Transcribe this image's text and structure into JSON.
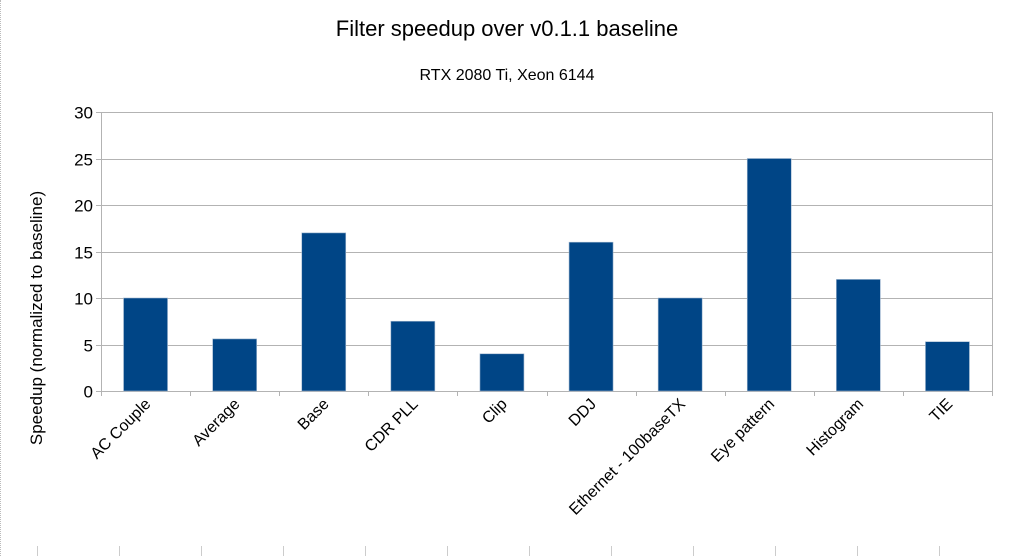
{
  "chart_data": {
    "type": "bar",
    "title": "Filter speedup over v0.1.1 baseline",
    "subtitle": "RTX 2080 Ti, Xeon 6144",
    "xlabel": "",
    "ylabel": "Speedup (normalized to baseline)",
    "categories": [
      "AC Couple",
      "Average",
      "Base",
      "CDR PLL",
      "Clip",
      "DDJ",
      "Ethernet - 100baseTX",
      "Eye pattern",
      "Histogram",
      "TIE"
    ],
    "values": [
      10,
      5.6,
      17,
      7.5,
      4,
      16,
      10,
      25,
      12,
      5.3
    ],
    "ylim": [
      0,
      30
    ],
    "yticks": [
      0,
      5,
      10,
      15,
      20,
      25,
      30
    ],
    "grid": true,
    "legend": "none",
    "bar_color": "#004586"
  }
}
